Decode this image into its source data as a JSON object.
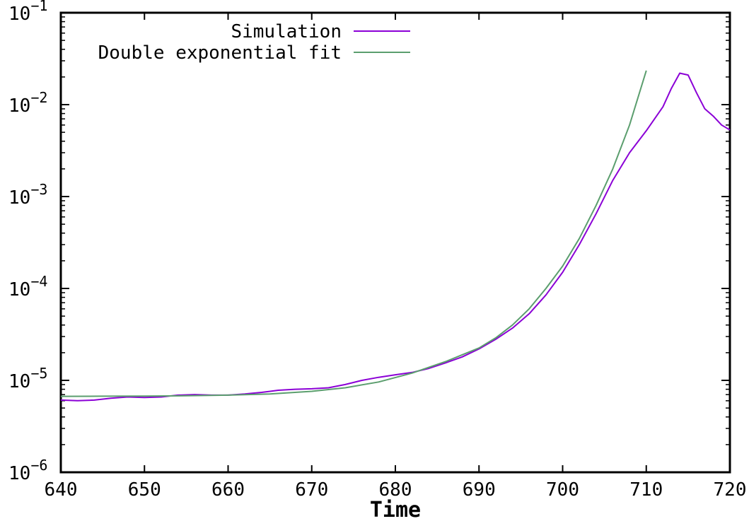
{
  "chart_data": {
    "type": "line",
    "title": "",
    "xlabel": "Time",
    "ylabel": "",
    "xlim": [
      640,
      720
    ],
    "ylim": [
      1e-06,
      0.1
    ],
    "yscale": "log",
    "grid": false,
    "legend_position": "top-left",
    "x_ticks": [
      640,
      650,
      660,
      670,
      680,
      690,
      700,
      710,
      720
    ],
    "x_tick_labels": [
      "640",
      "650",
      "660",
      "670",
      "680",
      "690",
      "700",
      "710",
      "720"
    ],
    "y_ticks": [
      {
        "value": 1e-06,
        "base": "10",
        "exp": "−6"
      },
      {
        "value": 1e-05,
        "base": "10",
        "exp": "−5"
      },
      {
        "value": 0.0001,
        "base": "10",
        "exp": "−4"
      },
      {
        "value": 0.001,
        "base": "10",
        "exp": "−3"
      },
      {
        "value": 0.01,
        "base": "10",
        "exp": "−2"
      },
      {
        "value": 0.1,
        "base": "10",
        "exp": "−1"
      }
    ],
    "series": [
      {
        "name": "Simulation",
        "color": "#8b00d6",
        "x": [
          640,
          642,
          644,
          646,
          648,
          650,
          652,
          654,
          656,
          658,
          660,
          662,
          664,
          666,
          668,
          670,
          672,
          674,
          676,
          678,
          680,
          682,
          684,
          686,
          688,
          690,
          692,
          694,
          696,
          698,
          700,
          702,
          704,
          706,
          708,
          710,
          712,
          713,
          714,
          715,
          716,
          717,
          718,
          719,
          720
        ],
        "y": [
          6.1e-06,
          6e-06,
          6.1e-06,
          6.4e-06,
          6.6e-06,
          6.5e-06,
          6.6e-06,
          6.9e-06,
          7e-06,
          6.9e-06,
          6.9e-06,
          7.1e-06,
          7.4e-06,
          7.8e-06,
          8e-06,
          8.1e-06,
          8.3e-06,
          9e-06,
          1e-05,
          1.08e-05,
          1.15e-05,
          1.22e-05,
          1.35e-05,
          1.55e-05,
          1.8e-05,
          2.2e-05,
          2.8e-05,
          3.7e-05,
          5.3e-05,
          8.5e-05,
          0.00015,
          0.0003,
          0.00065,
          0.0015,
          0.003,
          0.0052,
          0.0095,
          0.015,
          0.022,
          0.021,
          0.0135,
          0.009,
          0.0075,
          0.006,
          0.0053
        ]
      },
      {
        "name": "Double exponential fit",
        "color": "#5b9e6e",
        "x": [
          640,
          645,
          650,
          655,
          660,
          665,
          670,
          674,
          678,
          682,
          686,
          688,
          690,
          692,
          694,
          696,
          698,
          700,
          702,
          704,
          706,
          708,
          710
        ],
        "y": [
          6.7e-06,
          6.72e-06,
          6.75e-06,
          6.8e-06,
          6.9e-06,
          7.1e-06,
          7.6e-06,
          8.3e-06,
          9.6e-06,
          1.2e-05,
          1.6e-05,
          1.9e-05,
          2.25e-05,
          2.9e-05,
          4e-05,
          6e-05,
          0.0001,
          0.000175,
          0.00035,
          0.0008,
          0.002,
          0.006,
          0.0235
        ]
      }
    ]
  }
}
